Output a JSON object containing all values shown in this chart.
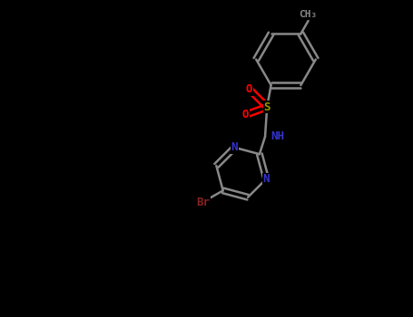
{
  "background_color": "#000000",
  "bond_color": "#888888",
  "bond_lw": 1.8,
  "atom_colors": {
    "N": "#3333CC",
    "O": "#FF0000",
    "S": "#999900",
    "Br": "#882222",
    "C": "#888888",
    "H": "#888888"
  },
  "font_size": 9,
  "font_size_small": 8
}
